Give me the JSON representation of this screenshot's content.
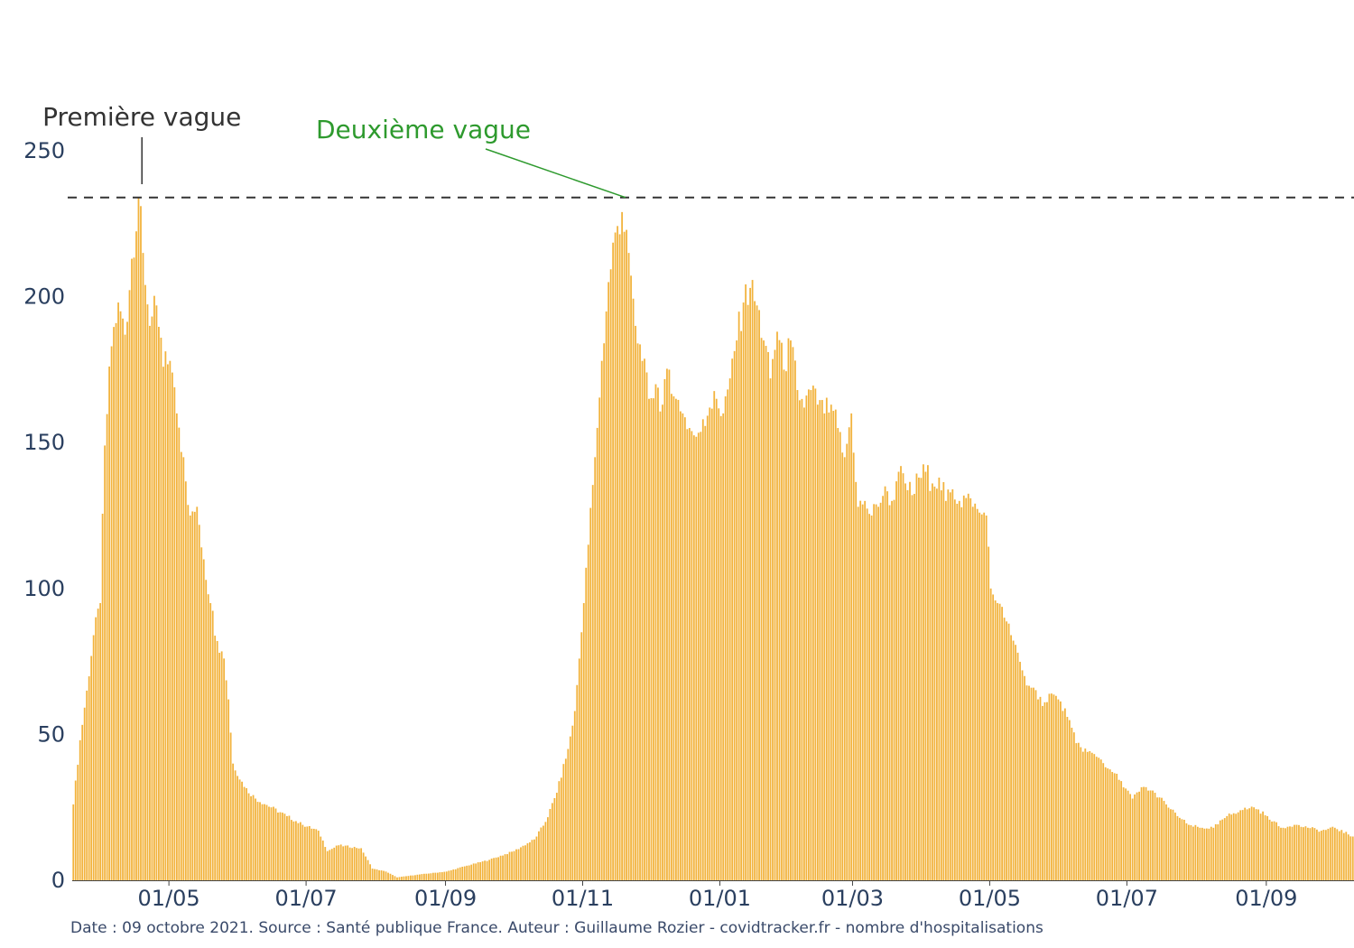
{
  "chart_data": {
    "type": "bar",
    "x_start_date": "2020-03-19",
    "ylim": [
      0,
      250
    ],
    "y_ticks": [
      0,
      50,
      100,
      150,
      200,
      250
    ],
    "x_tick_labels": [
      "01/05",
      "01/07",
      "01/09",
      "01/11",
      "01/01",
      "01/03",
      "01/05",
      "01/07",
      "01/09"
    ],
    "x_tick_dates": [
      "2020-05-01",
      "2020-07-01",
      "2020-09-01",
      "2020-11-01",
      "2021-01-01",
      "2021-03-01",
      "2021-05-01",
      "2021-07-01",
      "2021-09-01"
    ],
    "reference_line": 234,
    "bar_color": "#f2b33d",
    "annotations": [
      {
        "text": "Première vague",
        "date": "2020-04-19",
        "value": 234,
        "color": "#333333"
      },
      {
        "text": "Deuxième vague",
        "date": "2020-11-20",
        "value": 234,
        "color": "#2e9a2e"
      }
    ],
    "keypoints": [
      [
        "2020-03-19",
        26
      ],
      [
        "2020-03-22",
        48
      ],
      [
        "2020-03-25",
        65
      ],
      [
        "2020-03-28",
        84
      ],
      [
        "2020-03-31",
        95
      ],
      [
        "2020-04-02",
        149
      ],
      [
        "2020-04-05",
        183
      ],
      [
        "2020-04-08",
        198
      ],
      [
        "2020-04-11",
        187
      ],
      [
        "2020-04-14",
        213
      ],
      [
        "2020-04-17",
        234
      ],
      [
        "2020-04-19",
        215
      ],
      [
        "2020-04-22",
        190
      ],
      [
        "2020-04-25",
        197
      ],
      [
        "2020-04-28",
        176
      ],
      [
        "2020-05-01",
        178
      ],
      [
        "2020-05-04",
        160
      ],
      [
        "2020-05-07",
        145
      ],
      [
        "2020-05-10",
        125
      ],
      [
        "2020-05-13",
        128
      ],
      [
        "2020-05-16",
        110
      ],
      [
        "2020-05-19",
        95
      ],
      [
        "2020-05-22",
        82
      ],
      [
        "2020-05-25",
        76
      ],
      [
        "2020-05-27",
        62
      ],
      [
        "2020-05-29",
        40
      ],
      [
        "2020-06-03",
        32
      ],
      [
        "2020-06-08",
        28
      ],
      [
        "2020-06-15",
        25
      ],
      [
        "2020-06-22",
        22
      ],
      [
        "2020-06-29",
        19
      ],
      [
        "2020-07-06",
        17
      ],
      [
        "2020-07-10",
        10
      ],
      [
        "2020-07-15",
        12
      ],
      [
        "2020-07-25",
        11
      ],
      [
        "2020-07-30",
        4
      ],
      [
        "2020-08-05",
        3
      ],
      [
        "2020-08-10",
        1
      ],
      [
        "2020-08-20",
        2
      ],
      [
        "2020-09-01",
        3
      ],
      [
        "2020-09-10",
        5
      ],
      [
        "2020-09-20",
        7
      ],
      [
        "2020-10-01",
        10
      ],
      [
        "2020-10-10",
        14
      ],
      [
        "2020-10-15",
        20
      ],
      [
        "2020-10-20",
        30
      ],
      [
        "2020-10-25",
        45
      ],
      [
        "2020-10-28",
        58
      ],
      [
        "2020-10-31",
        85
      ],
      [
        "2020-11-03",
        115
      ],
      [
        "2020-11-06",
        145
      ],
      [
        "2020-11-09",
        178
      ],
      [
        "2020-11-12",
        205
      ],
      [
        "2020-11-15",
        222
      ],
      [
        "2020-11-18",
        229
      ],
      [
        "2020-11-21",
        215
      ],
      [
        "2020-11-24",
        190
      ],
      [
        "2020-11-27",
        178
      ],
      [
        "2020-11-30",
        165
      ],
      [
        "2020-12-03",
        170
      ],
      [
        "2020-12-06",
        163
      ],
      [
        "2020-12-09",
        175
      ],
      [
        "2020-12-12",
        165
      ],
      [
        "2020-12-15",
        160
      ],
      [
        "2020-12-18",
        155
      ],
      [
        "2020-12-21",
        152
      ],
      [
        "2020-12-24",
        158
      ],
      [
        "2020-12-27",
        162
      ],
      [
        "2020-12-30",
        165
      ],
      [
        "2021-01-02",
        160
      ],
      [
        "2021-01-05",
        172
      ],
      [
        "2021-01-08",
        185
      ],
      [
        "2021-01-11",
        198
      ],
      [
        "2021-01-14",
        203
      ],
      [
        "2021-01-17",
        197
      ],
      [
        "2021-01-20",
        185
      ],
      [
        "2021-01-23",
        172
      ],
      [
        "2021-01-26",
        188
      ],
      [
        "2021-01-29",
        175
      ],
      [
        "2021-02-01",
        185
      ],
      [
        "2021-02-04",
        168
      ],
      [
        "2021-02-07",
        162
      ],
      [
        "2021-02-10",
        168
      ],
      [
        "2021-02-13",
        163
      ],
      [
        "2021-02-16",
        160
      ],
      [
        "2021-02-19",
        163
      ],
      [
        "2021-02-22",
        155
      ],
      [
        "2021-02-25",
        145
      ],
      [
        "2021-02-28",
        160
      ],
      [
        "2021-03-03",
        128
      ],
      [
        "2021-03-06",
        130
      ],
      [
        "2021-03-09",
        125
      ],
      [
        "2021-03-12",
        128
      ],
      [
        "2021-03-15",
        135
      ],
      [
        "2021-03-18",
        130
      ],
      [
        "2021-03-21",
        140
      ],
      [
        "2021-03-24",
        136
      ],
      [
        "2021-03-27",
        132
      ],
      [
        "2021-03-30",
        138
      ],
      [
        "2021-04-02",
        140
      ],
      [
        "2021-04-05",
        136
      ],
      [
        "2021-04-08",
        138
      ],
      [
        "2021-04-11",
        130
      ],
      [
        "2021-04-14",
        134
      ],
      [
        "2021-04-17",
        130
      ],
      [
        "2021-04-20",
        131
      ],
      [
        "2021-04-23",
        128
      ],
      [
        "2021-04-26",
        126
      ],
      [
        "2021-04-29",
        125
      ],
      [
        "2021-05-01",
        100
      ],
      [
        "2021-05-04",
        95
      ],
      [
        "2021-05-07",
        90
      ],
      [
        "2021-05-10",
        84
      ],
      [
        "2021-05-13",
        78
      ],
      [
        "2021-05-16",
        70
      ],
      [
        "2021-05-19",
        66
      ],
      [
        "2021-05-22",
        62
      ],
      [
        "2021-05-25",
        61
      ],
      [
        "2021-05-28",
        64
      ],
      [
        "2021-05-31",
        62
      ],
      [
        "2021-06-04",
        56
      ],
      [
        "2021-06-08",
        47
      ],
      [
        "2021-06-13",
        44
      ],
      [
        "2021-06-18",
        42
      ],
      [
        "2021-06-23",
        38
      ],
      [
        "2021-06-28",
        34
      ],
      [
        "2021-07-03",
        28
      ],
      [
        "2021-07-08",
        32
      ],
      [
        "2021-07-13",
        30
      ],
      [
        "2021-07-18",
        26
      ],
      [
        "2021-07-23",
        22
      ],
      [
        "2021-07-28",
        19
      ],
      [
        "2021-08-02",
        18
      ],
      [
        "2021-08-08",
        18
      ],
      [
        "2021-08-14",
        22
      ],
      [
        "2021-08-20",
        24
      ],
      [
        "2021-08-26",
        25
      ],
      [
        "2021-09-01",
        22
      ],
      [
        "2021-09-07",
        18
      ],
      [
        "2021-09-13",
        19
      ],
      [
        "2021-09-19",
        18
      ],
      [
        "2021-09-25",
        17
      ],
      [
        "2021-10-01",
        18
      ],
      [
        "2021-10-09",
        15
      ]
    ]
  },
  "footer": "Date : 09 octobre 2021. Source : Santé publique France. Auteur : Guillaume Rozier - covidtracker.fr - nombre d'hospitalisations"
}
